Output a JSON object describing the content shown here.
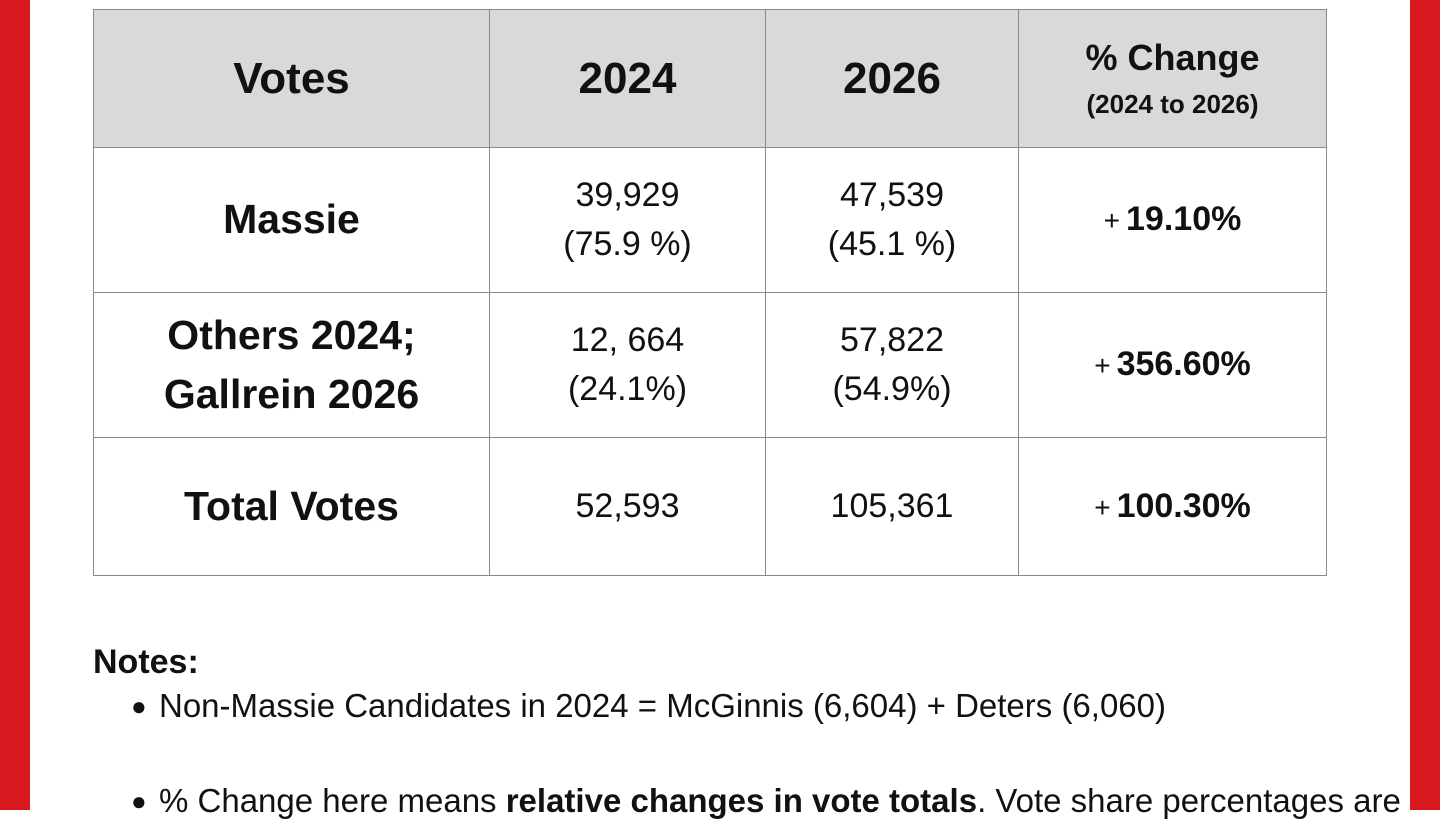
{
  "colors": {
    "side_bar": "#d71920",
    "header_bg": "#d9d9d9",
    "border": "#8a8a8a"
  },
  "table": {
    "headers": {
      "votes": "Votes",
      "y2024": "2024",
      "y2026": "2026",
      "change_main": "% Change",
      "change_sub": "(2024 to 2026)"
    },
    "rows": [
      {
        "label_line1": "Massie",
        "label_line2": "",
        "v2024_count": "39,929",
        "v2024_share": "(75.9 %)",
        "v2026_count": "47,539",
        "v2026_share": "(45.1 %)",
        "change_sign": "+",
        "change_value": "19.10%"
      },
      {
        "label_line1": "Others 2024;",
        "label_line2": "Gallrein 2026",
        "v2024_count": "12, 664",
        "v2024_share": "(24.1%)",
        "v2026_count": "57,822",
        "v2026_share": "(54.9%)",
        "change_sign": "+",
        "change_value": "356.60%"
      },
      {
        "label_line1": "Total Votes",
        "label_line2": "",
        "v2024_count": "52,593",
        "v2024_share": "",
        "v2026_count": "105,361",
        "v2026_share": "",
        "change_sign": "+",
        "change_value": "100.30%"
      }
    ]
  },
  "notes": {
    "title": "Notes:",
    "bullet_icon": "bullet-dot",
    "items": [
      {
        "text": "Non-Massie Candidates in 2024 =  McGinnis (6,604) + Deters (6,060)"
      },
      {
        "prefix": "% Change here means ",
        "bold": "relative changes in vote totals",
        "suffix": ". Vote share percentages are"
      }
    ]
  }
}
